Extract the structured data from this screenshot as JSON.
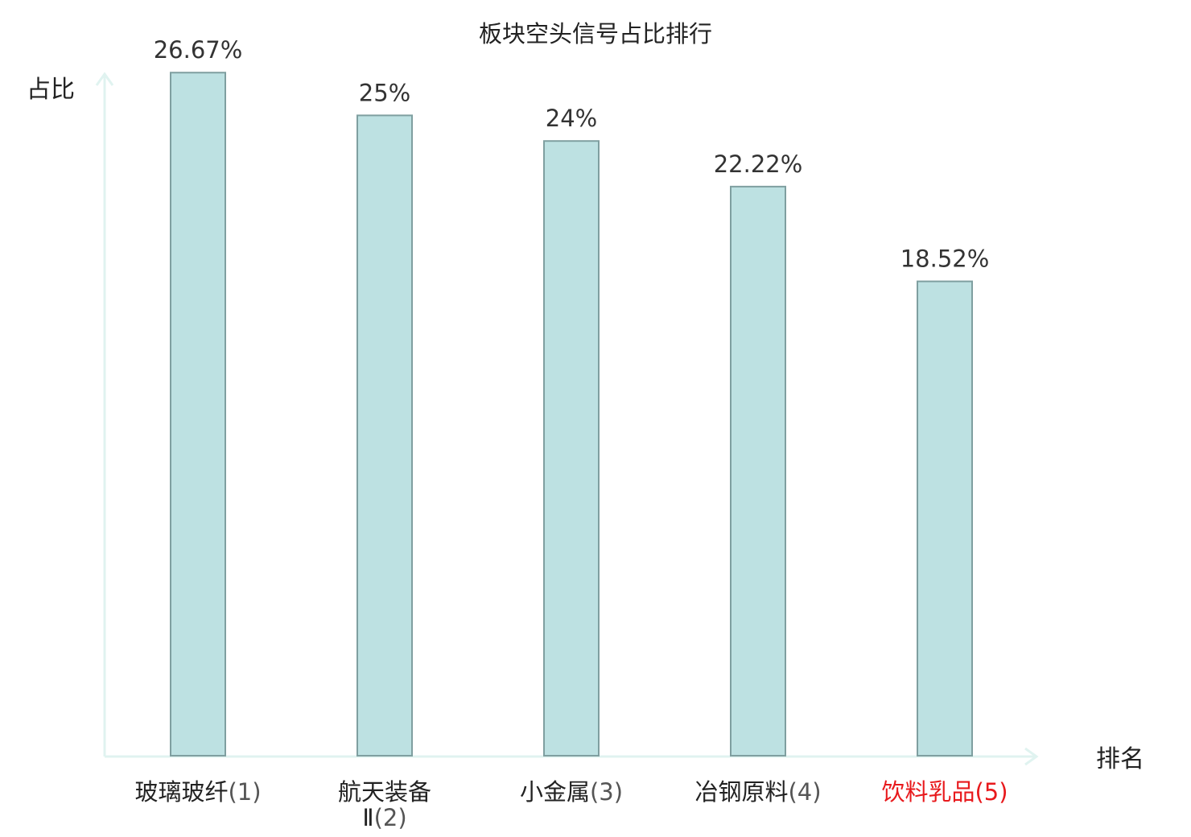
{
  "chart_data": {
    "type": "bar",
    "title": "板块空头信号占比排行",
    "xlabel": "排名",
    "ylabel": "占比",
    "ylim": [
      0,
      28.5
    ],
    "categories": [
      {
        "name": "玻璃玻纤",
        "rank": "(1)",
        "name_line2": "",
        "highlight": false
      },
      {
        "name": "航天装备",
        "rank": "(2)",
        "name_line2": "Ⅱ",
        "highlight": false
      },
      {
        "name": "小金属",
        "rank": "(3)",
        "name_line2": "",
        "highlight": false
      },
      {
        "name": "冶钢原料",
        "rank": "(4)",
        "name_line2": "",
        "highlight": false
      },
      {
        "name": "饮料乳品",
        "rank": "(5)",
        "name_line2": "",
        "highlight": true
      }
    ],
    "values": [
      26.67,
      25,
      24,
      22.22,
      18.52
    ],
    "value_labels": [
      "26.67%",
      "25%",
      "24%",
      "22.22%",
      "18.52%"
    ],
    "grid": false,
    "legend": "none"
  },
  "colors": {
    "bar_fill": "#bde1e2",
    "bar_stroke": "#7f9fa0",
    "axis": "#e0f3f0",
    "highlight_text": "#e8191c",
    "text": "#222222"
  }
}
